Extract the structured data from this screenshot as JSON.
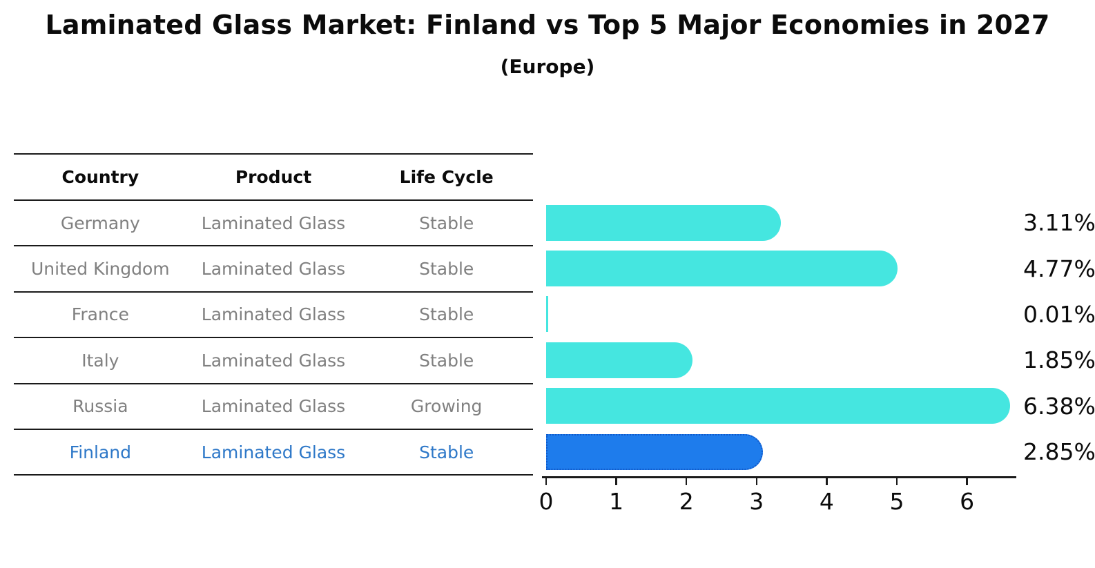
{
  "title": "Laminated Glass Market: Finland vs Top 5 Major Economies in 2027",
  "subtitle": "(Europe)",
  "table": {
    "headers": [
      "Country",
      "Product",
      "Life Cycle"
    ],
    "rows": [
      {
        "country": "Germany",
        "product": "Laminated Glass",
        "life_cycle": "Stable",
        "highlight": false
      },
      {
        "country": "United Kingdom",
        "product": "Laminated Glass",
        "life_cycle": "Stable",
        "highlight": false
      },
      {
        "country": "France",
        "product": "Laminated Glass",
        "life_cycle": "Stable",
        "highlight": false
      },
      {
        "country": "Italy",
        "product": "Laminated Glass",
        "life_cycle": "Stable",
        "highlight": false
      },
      {
        "country": "Russia",
        "product": "Laminated Glass",
        "life_cycle": "Growing",
        "highlight": false
      },
      {
        "country": "Finland",
        "product": "Laminated Glass",
        "life_cycle": "Stable",
        "highlight": true
      }
    ]
  },
  "chart_data": {
    "type": "bar",
    "orientation": "horizontal",
    "title": "Laminated Glass Market: Finland vs Top 5 Major Economies in 2027",
    "subtitle": "(Europe)",
    "categories": [
      "Germany",
      "United Kingdom",
      "France",
      "Italy",
      "Russia",
      "Finland"
    ],
    "values": [
      3.11,
      4.77,
      0.01,
      1.85,
      6.38,
      2.85
    ],
    "value_labels": [
      "3.11%",
      "4.77%",
      "0.01%",
      "1.85%",
      "6.38%",
      "2.85%"
    ],
    "x_ticks": [
      0,
      1,
      2,
      3,
      4,
      5,
      6
    ],
    "xlim": [
      0,
      6.7
    ],
    "grid": false,
    "legend": false,
    "highlight_index": 5,
    "bar_color": "#45E6E0",
    "highlight_color": "#1E7CEC",
    "highlight_border_color": "#1159C9",
    "table_text_color": "#808080",
    "highlight_text_color": "#2E78C8",
    "axis_color": "#1a1a1a",
    "label_color": "#0b0b0b"
  }
}
